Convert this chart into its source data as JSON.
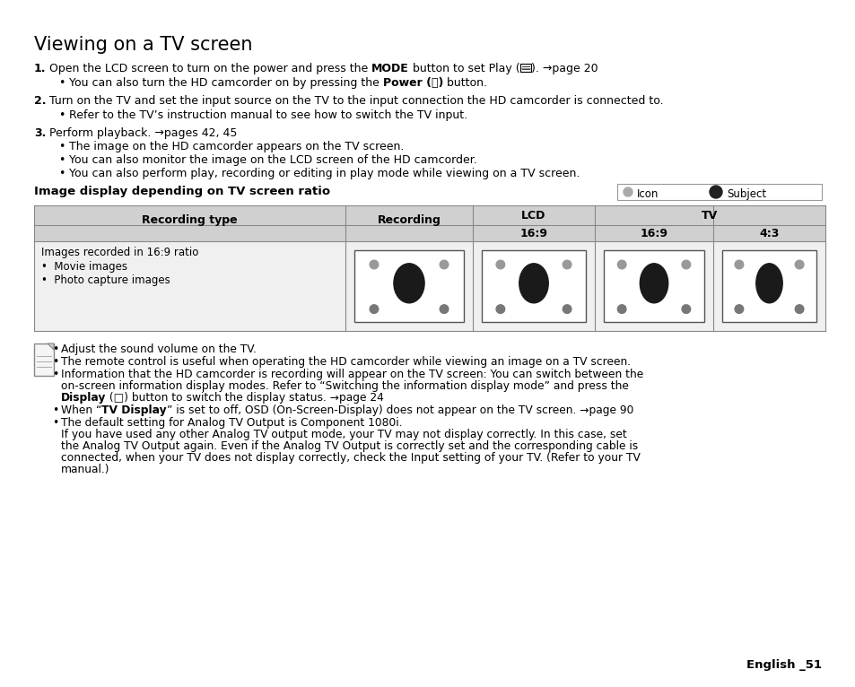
{
  "title": "Viewing on a TV screen",
  "bg_color": "#ffffff",
  "text_color": "#000000",
  "body_font_size": 9.0,
  "small_font_size": 8.5,
  "title_font_size": 15,
  "footer_text": "English _51",
  "table_heading": "Image display depending on TV screen ratio",
  "legend_icon": "Icon",
  "legend_subject": "Subject",
  "row_label_line1": "Images recorded in 16:9 ratio",
  "row_label_bullets": [
    "Movie images",
    "Photo capture images"
  ],
  "note_bullets_simple": [
    "Adjust the sound volume on the TV.",
    "The remote control is useful when operating the HD camcorder while viewing an image on a TV screen."
  ],
  "note_b3_pre": "Information that the HD camcorder is recording will appear on the TV screen: You can switch between the on-screen information display modes. Refer to “Switching the information display mode” and press the ",
  "note_b3_bold": "Display",
  "note_b3_post": " (□) button to switch the display status. →page 24",
  "note_b4_pre": "When “",
  "note_b4_bold": "TV Display",
  "note_b4_post": "” is set to off, OSD (On-Screen-Display) does not appear on the TV screen. →page 90",
  "note_b5_line1": "The default setting for Analog TV Output is Component 1080i.",
  "note_b5_rest": "If you have used any other Analog TV output mode, your TV may not display correctly. In this case, set the Analog TV Output again. Even if the Analog TV Output is correctly set and the corresponding cable is connected, when your TV does not display correctly, check the Input setting of your TV. (Refer to your TV manual.)"
}
